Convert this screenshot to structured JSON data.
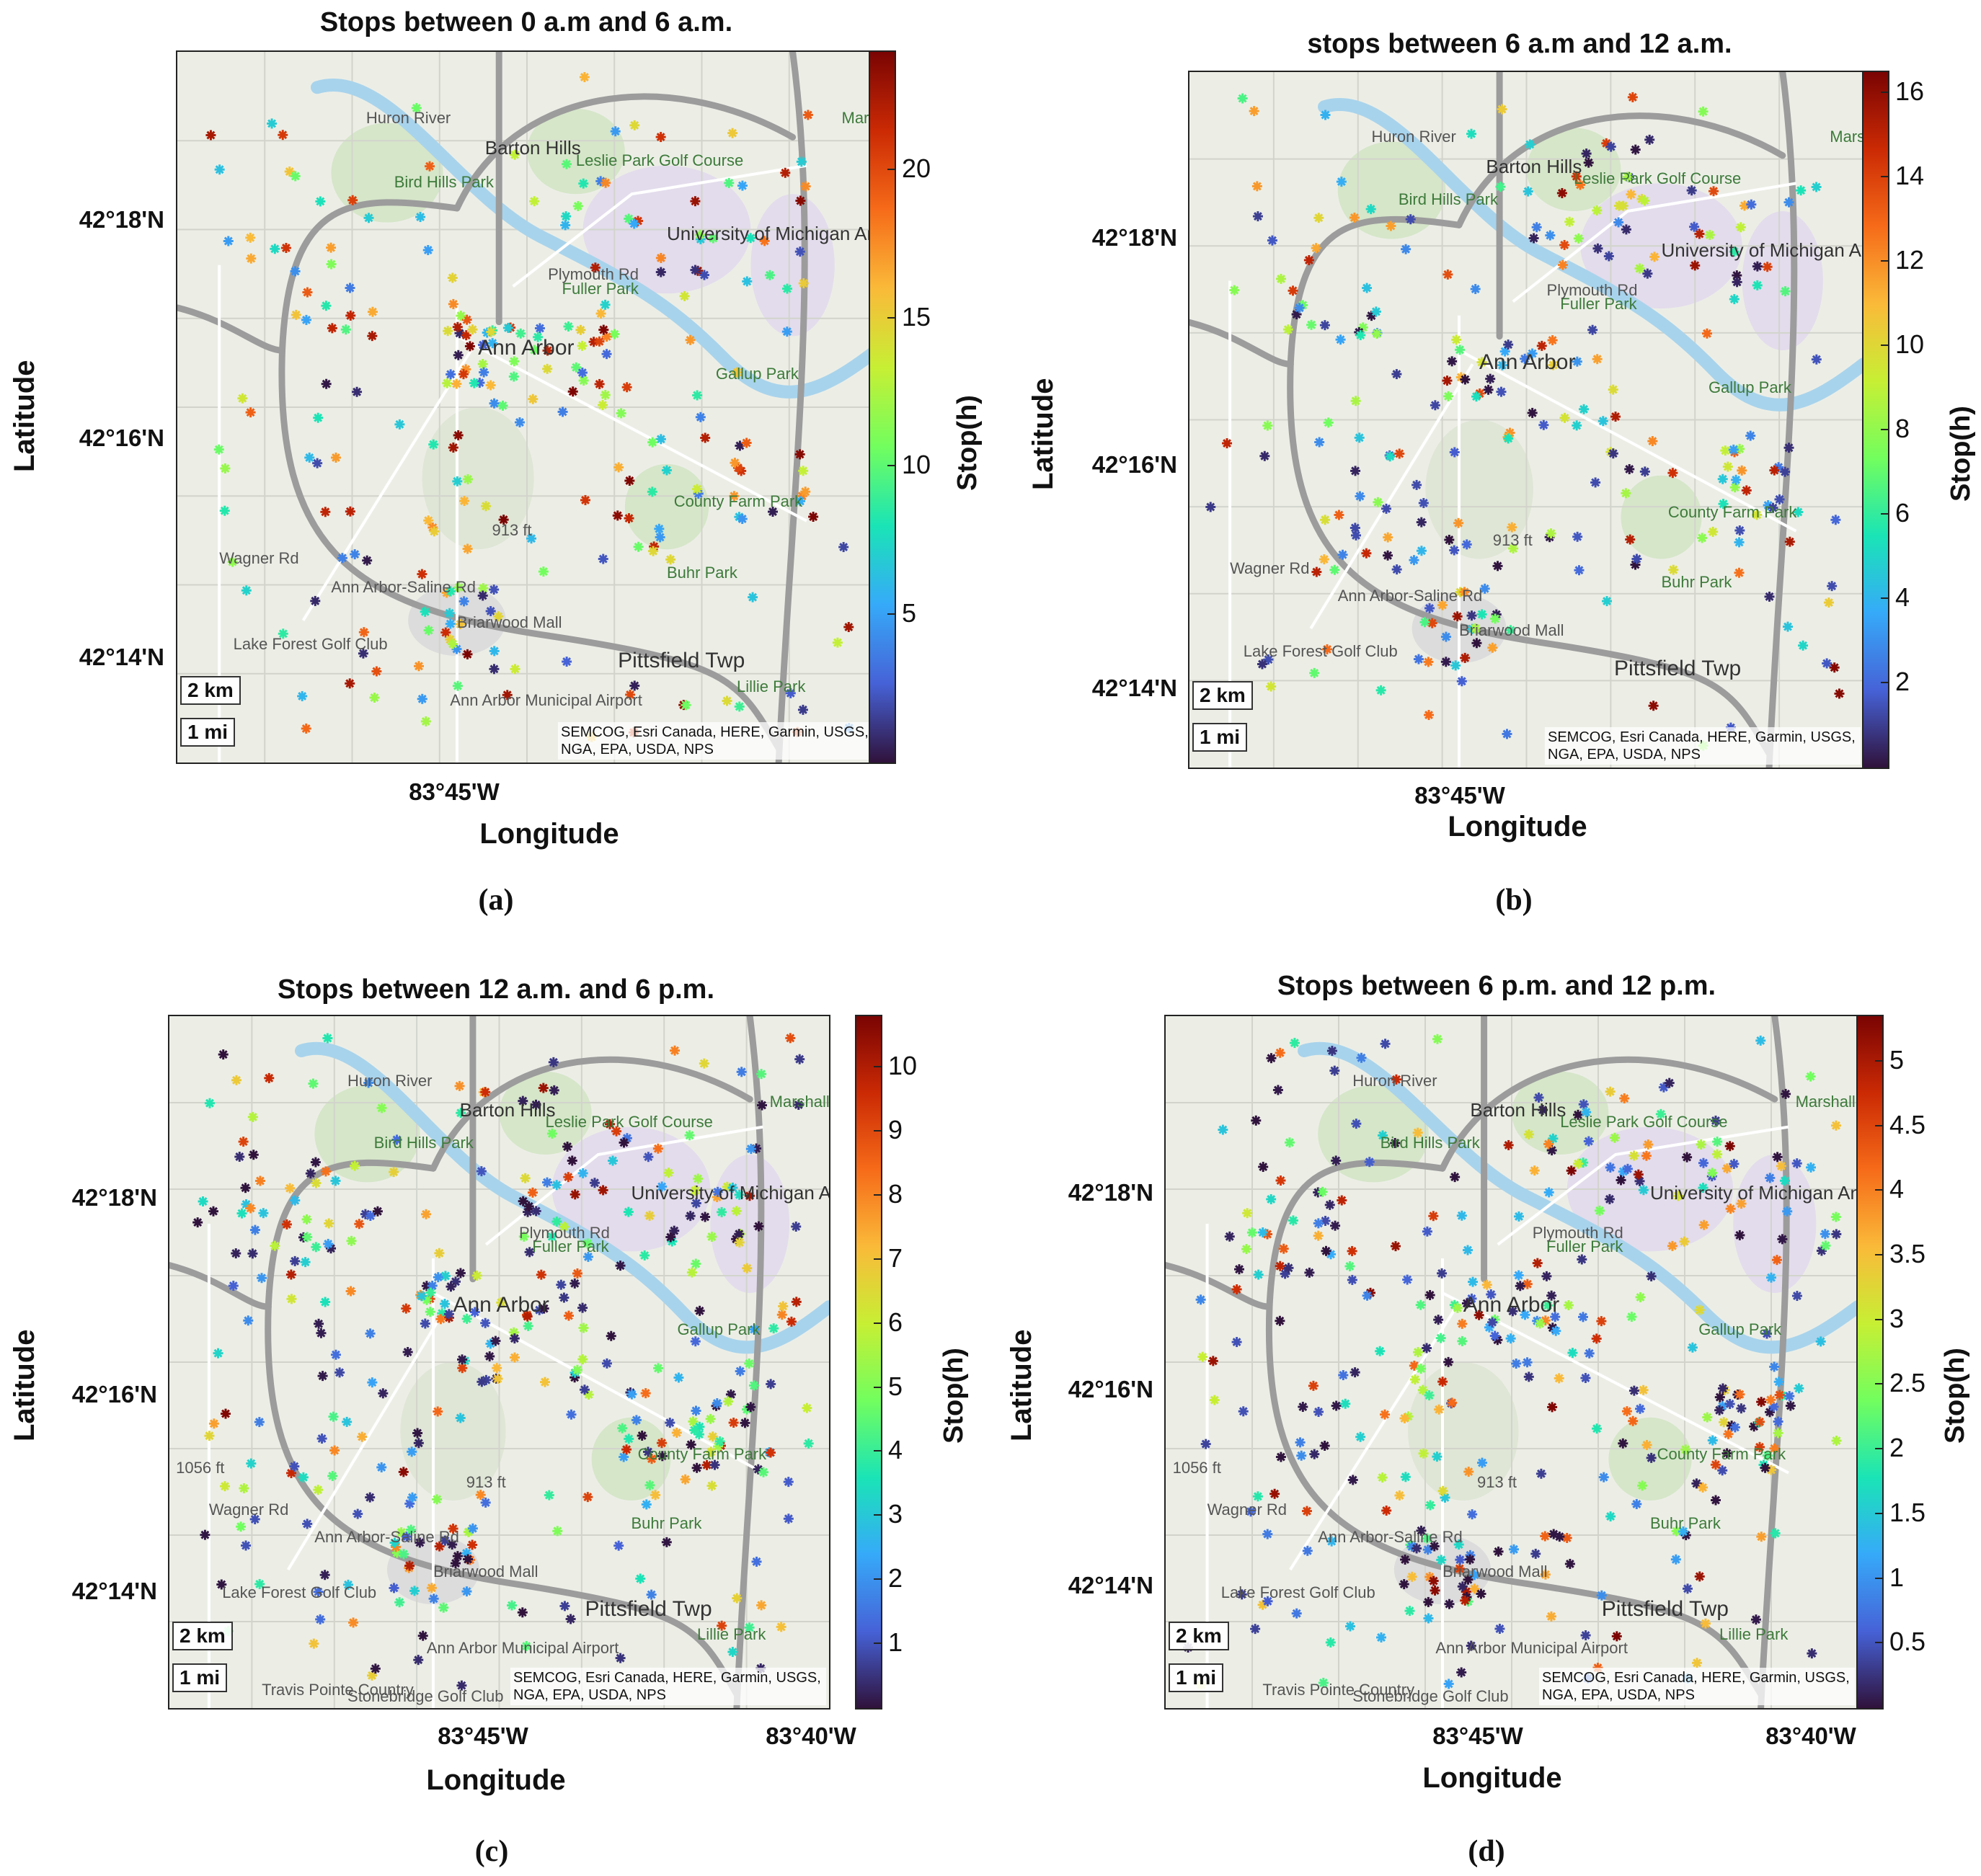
{
  "panels": [
    {
      "id": "a",
      "title": "Stops between 0 a.m and 6 a.m.",
      "caption": "(a)",
      "ylabel": "Latitude",
      "xlabel": "Longitude",
      "yticks": [
        "42°18'N",
        "42°16'N",
        "42°14'N"
      ],
      "xticks": [
        "83°45'W"
      ],
      "colorbar_label": "Stop(h)",
      "colorbar_ticks": [
        "20",
        "15",
        "10",
        "5"
      ],
      "scale_km": "2 km",
      "scale_mi": "1 mi",
      "attribution": "SEMCOG, Esri Canada, HERE, Garmin, USGS, NGA, EPA, USDA, NPS",
      "map_labels": [
        "Barton Hills",
        "Leslie Park Golf Course",
        "Bird Hills Park",
        "University of Michigan Ann Arbor",
        "Fuller Park",
        "Ann Arbor",
        "Gallup Park",
        "County Farm Park",
        "Buhr Park",
        "Briarwood Mall",
        "Pittsfield Twp",
        "Lake Forest Golf Club",
        "Ann Arbor Municipal Airport",
        "Lillie Park",
        "Huron River",
        "Plymouth Rd",
        "Ann Arbor-Saline Rd",
        "Wagner Rd",
        "913 ft",
        "Mars Pa"
      ],
      "chart_data": {
        "type": "scatter",
        "color_range": [
          0,
          24
        ],
        "description_note": "stop durations (h)"
      }
    },
    {
      "id": "b",
      "title": "stops between 6 a.m and 12 a.m.",
      "caption": "(b)",
      "ylabel": "Latitude",
      "xlabel": "Longitude",
      "yticks": [
        "42°18'N",
        "42°16'N",
        "42°14'N"
      ],
      "xticks": [
        "83°45'W"
      ],
      "colorbar_label": "Stop(h)",
      "colorbar_ticks": [
        "16",
        "14",
        "12",
        "10",
        "8",
        "6",
        "4",
        "2"
      ],
      "scale_km": "2 km",
      "scale_mi": "1 mi",
      "attribution": "SEMCOG, Esri Canada, HERE, Garmin, USGS, NGA, EPA, USDA, NPS",
      "map_labels": [
        "Barton Hills",
        "Leslie Park Golf Course",
        "Bird Hills Park",
        "University of Michigan Ann Arbor",
        "Fuller Park",
        "Ann Arbor",
        "Gallup Park",
        "County Farm Park",
        "Buhr Park",
        "Briarwood Mall",
        "Pittsfield Twp",
        "Lake Forest Golf Club",
        "Huron River",
        "Plymouth Rd",
        "Ann Arbor-Saline Rd",
        "Wagner Rd",
        "913 ft",
        "Mars Pa"
      ],
      "chart_data": {
        "type": "scatter",
        "color_range": [
          0,
          16
        ]
      }
    },
    {
      "id": "c",
      "title": "Stops between 12 a.m. and 6 p.m.",
      "caption": "(c)",
      "ylabel": "Latitude",
      "xlabel": "Longitude",
      "yticks": [
        "42°18'N",
        "42°16'N",
        "42°14'N"
      ],
      "xticks": [
        "83°45'W",
        "83°40'W"
      ],
      "colorbar_label": "Stop(h)",
      "colorbar_ticks": [
        "10",
        "9",
        "8",
        "7",
        "6",
        "5",
        "4",
        "3",
        "2",
        "1"
      ],
      "scale_km": "2 km",
      "scale_mi": "1 mi",
      "attribution": "SEMCOG, Esri Canada, HERE, Garmin, USGS, NGA, EPA, USDA, NPS",
      "map_labels": [
        "Barton Hills",
        "Leslie Park Golf Course",
        "Bird Hills Park",
        "University of Michigan Ann Arbor",
        "Fuller Park",
        "Ann Arbor",
        "Gallup Park",
        "County Farm Park",
        "Buhr Park",
        "Briarwood Mall",
        "Pittsfield Twp",
        "Lake Forest Golf Club",
        "Ann Arbor Municipal Airport",
        "Lillie Park",
        "Marshall Park",
        "Travis Pointe Country",
        "Stonebridge Golf Club",
        "Huron River",
        "Plymouth Rd",
        "Ann Arbor-Saline Rd",
        "Wagner Rd",
        "913 ft",
        "1056 ft"
      ],
      "chart_data": {
        "type": "scatter",
        "color_range": [
          0,
          10.8
        ]
      }
    },
    {
      "id": "d",
      "title": "Stops between 6 p.m. and 12 p.m.",
      "caption": "(d)",
      "ylabel": "Latitude",
      "xlabel": "Longitude",
      "yticks": [
        "42°18'N",
        "42°16'N",
        "42°14'N"
      ],
      "xticks": [
        "83°45'W",
        "83°40'W"
      ],
      "colorbar_label": "Stop(h)",
      "colorbar_ticks": [
        "5",
        "4.5",
        "4",
        "3.5",
        "3",
        "2.5",
        "2",
        "1.5",
        "1",
        "0.5"
      ],
      "scale_km": "2 km",
      "scale_mi": "1 mi",
      "attribution": "SEMCOG, Esri Canada, HERE, Garmin, USGS, NGA, EPA, USDA, NPS",
      "map_labels": [
        "Barton Hills",
        "Leslie Park Golf Course",
        "Bird Hills Park",
        "University of Michigan Ann Arbor",
        "Fuller Park",
        "Ann Arbor",
        "Gallup Park",
        "County Farm Park",
        "Buhr Park",
        "Briarwood Mall",
        "Pittsfield Twp",
        "Lake Forest Golf Club",
        "Ann Arbor Municipal Airport",
        "Lillie Park",
        "Marshall Park",
        "Travis Pointe Country",
        "Stonebridge Golf Club",
        "Huron River",
        "Plymouth Rd",
        "Ann Arbor-Saline Rd",
        "Wagner Rd",
        "913 ft",
        "1056 ft"
      ],
      "chart_data": {
        "type": "scatter",
        "color_range": [
          0,
          5.3
        ]
      }
    }
  ],
  "colormap_colors": [
    "#30123b",
    "#4662d7",
    "#36aaf9",
    "#1ae4b6",
    "#72fe5e",
    "#c7ef34",
    "#faba39",
    "#f66b19",
    "#cb2a04",
    "#7a0403"
  ]
}
